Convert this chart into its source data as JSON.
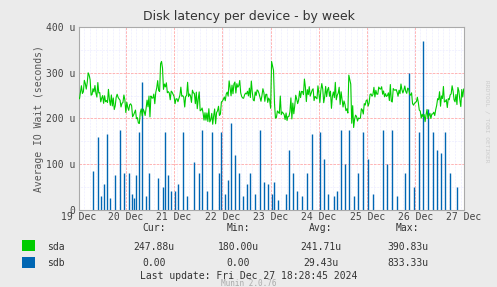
{
  "title": "Disk latency per device - by week",
  "ylabel": "Average IO Wait (seconds)",
  "background_color": "#EBEBEB",
  "plot_bg_color": "#FFFFFF",
  "sda_color": "#00CC00",
  "sdb_color": "#0066B3",
  "border_color": "#AAAAAA",
  "grid_color_major": "#FF9999",
  "grid_color_minor": "#DDDDFF",
  "x_labels": [
    "19 Dec",
    "20 Dec",
    "21 Dec",
    "22 Dec",
    "23 Dec",
    "24 Dec",
    "25 Dec",
    "26 Dec",
    "27 Dec"
  ],
  "x_ticks_norm": [
    0.0,
    0.125,
    0.25,
    0.375,
    0.5,
    0.625,
    0.75,
    0.875,
    1.0
  ],
  "ylim": [
    0,
    400
  ],
  "y_ticks": [
    0,
    100,
    200,
    300,
    400
  ],
  "y_tick_labels": [
    "0",
    "100 u",
    "200 u",
    "300 u",
    "400 u"
  ],
  "stats_cur_sda": "247.88u",
  "stats_min_sda": "180.00u",
  "stats_avg_sda": "241.71u",
  "stats_max_sda": "390.83u",
  "stats_cur_sdb": "0.00",
  "stats_min_sdb": "0.00",
  "stats_avg_sdb": "29.43u",
  "stats_max_sdb": "833.33u",
  "last_update": "Last update: Fri Dec 27 18:28:45 2024",
  "munin_version": "Munin 2.0.76",
  "n_points": 400,
  "watermark": "RRDTOOL / TOBI OETIKER"
}
